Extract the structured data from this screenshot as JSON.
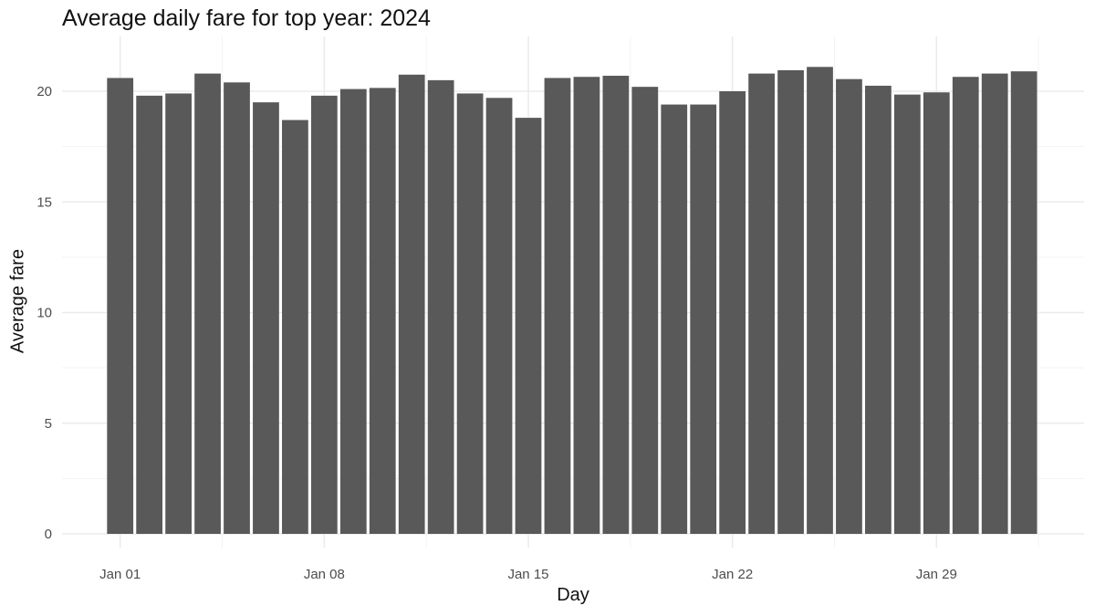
{
  "chart_data": {
    "type": "bar",
    "title": "Average daily fare for top year: 2024",
    "xlabel": "Day",
    "ylabel": "Average fare",
    "x": [
      "2024-01-01",
      "2024-01-02",
      "2024-01-03",
      "2024-01-04",
      "2024-01-05",
      "2024-01-06",
      "2024-01-07",
      "2024-01-08",
      "2024-01-09",
      "2024-01-10",
      "2024-01-11",
      "2024-01-12",
      "2024-01-13",
      "2024-01-14",
      "2024-01-15",
      "2024-01-16",
      "2024-01-17",
      "2024-01-18",
      "2024-01-19",
      "2024-01-20",
      "2024-01-21",
      "2024-01-22",
      "2024-01-23",
      "2024-01-24",
      "2024-01-25",
      "2024-01-26",
      "2024-01-27",
      "2024-01-28",
      "2024-01-29",
      "2024-01-30",
      "2024-01-31",
      "2024-02-01"
    ],
    "values": [
      20.6,
      19.8,
      19.9,
      20.8,
      20.4,
      19.5,
      18.7,
      19.8,
      20.1,
      20.15,
      20.75,
      20.5,
      19.9,
      19.7,
      18.8,
      20.6,
      20.65,
      20.7,
      20.2,
      19.4,
      19.4,
      20.0,
      20.8,
      20.95,
      21.1,
      20.55,
      20.25,
      19.85,
      19.95,
      20.65,
      20.8,
      20.9
    ],
    "x_ticks": [
      "Jan 01",
      "Jan 08",
      "Jan 15",
      "Jan 22",
      "Jan 29"
    ],
    "y_ticks": [
      "0",
      "5",
      "10",
      "15",
      "20"
    ],
    "ylim": [
      0,
      22
    ],
    "grid": true,
    "bar_color": "#595959",
    "grid_color": "#ebebeb"
  }
}
